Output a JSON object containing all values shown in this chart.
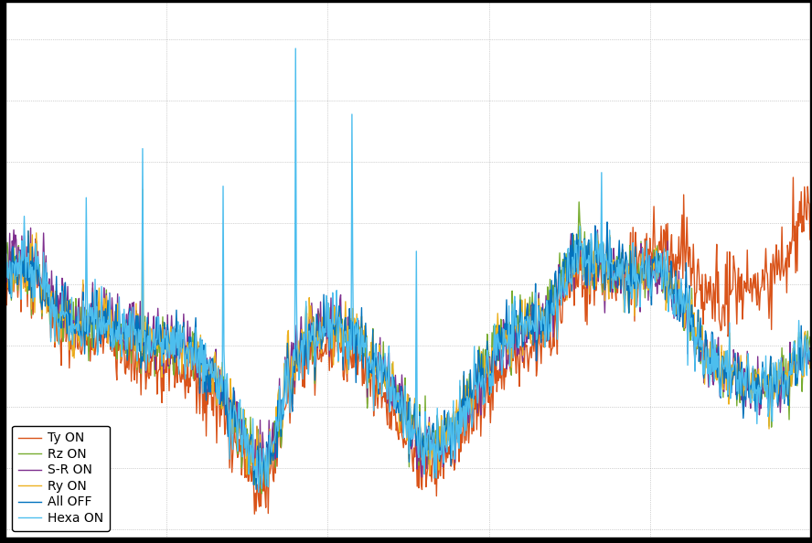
{
  "legend_labels": [
    "All OFF",
    "Ty ON",
    "Ry ON",
    "S-R ON",
    "Rz ON",
    "Hexa ON"
  ],
  "line_colors": [
    "#0072BD",
    "#D95319",
    "#EDB120",
    "#7E2F8E",
    "#77AC30",
    "#4DBEEE"
  ],
  "line_widths": [
    1.0,
    1.0,
    1.0,
    1.0,
    1.0,
    1.0
  ],
  "background_color": "#ffffff",
  "grid_color": "#aaaaaa",
  "n_points": 1000,
  "seed": 42,
  "figsize": [
    8.88,
    5.94
  ],
  "dpi": 100
}
